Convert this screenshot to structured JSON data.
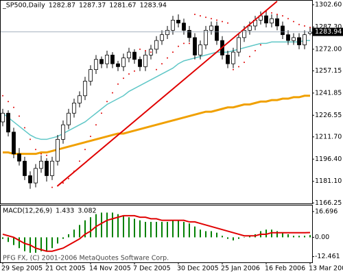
{
  "chart_data": [
    {
      "type": "candlestick",
      "symbol": "_SP500,Daily",
      "categories": [
        "29 Sep 2005",
        null,
        null,
        null,
        null,
        null,
        null,
        null,
        "21 Oct 2005",
        null,
        null,
        null,
        null,
        null,
        null,
        null,
        "14 Nov 2005",
        null,
        null,
        null,
        null,
        null,
        null,
        null,
        "7 Dec 2005",
        null,
        null,
        null,
        null,
        null,
        null,
        null,
        "30 Dec 2005",
        null,
        null,
        null,
        null,
        null,
        null,
        null,
        "25 Jan 2006",
        null,
        null,
        null,
        null,
        null,
        null,
        null,
        "16 Feb 2006",
        null,
        null,
        null,
        null,
        null,
        null,
        null,
        "13 Mar 2006"
      ],
      "open": [
        1222,
        1228,
        1215,
        1200,
        1195,
        1185,
        1180,
        1190,
        1195,
        1185,
        1195,
        1210,
        1220,
        1228,
        1235,
        1240,
        1250,
        1258,
        1265,
        1262,
        1268,
        1262,
        1260,
        1266,
        1270,
        1265,
        1260,
        1268,
        1272,
        1278,
        1282,
        1285,
        1292,
        1290,
        1285,
        1280,
        1268,
        1275,
        1285,
        1288,
        1278,
        1268,
        1262,
        1270,
        1280,
        1285,
        1288,
        1292,
        1295,
        1290,
        1293,
        1288,
        1282,
        1278,
        1280,
        1275,
        1282.87
      ],
      "high": [
        1231,
        1230,
        1218,
        1204,
        1198,
        1188,
        1193,
        1199,
        1197,
        1198,
        1213,
        1223,
        1231,
        1238,
        1243,
        1253,
        1261,
        1268,
        1267,
        1271,
        1270,
        1264,
        1269,
        1273,
        1272,
        1267,
        1271,
        1275,
        1281,
        1285,
        1288,
        1295,
        1296,
        1293,
        1288,
        1283,
        1278,
        1288,
        1291,
        1291,
        1281,
        1271,
        1273,
        1283,
        1288,
        1291,
        1295,
        1298,
        1298,
        1296,
        1296,
        1291,
        1285,
        1283,
        1283,
        1285,
        1287.37
      ],
      "low": [
        1219,
        1212,
        1197,
        1192,
        1182,
        1176,
        1177,
        1187,
        1181,
        1182,
        1192,
        1207,
        1217,
        1225,
        1232,
        1237,
        1247,
        1255,
        1259,
        1259,
        1259,
        1257,
        1257,
        1263,
        1262,
        1257,
        1257,
        1265,
        1269,
        1275,
        1279,
        1282,
        1287,
        1282,
        1277,
        1265,
        1265,
        1272,
        1282,
        1275,
        1265,
        1259,
        1259,
        1267,
        1277,
        1282,
        1285,
        1289,
        1287,
        1287,
        1285,
        1279,
        1275,
        1275,
        1272,
        1272,
        1281.67
      ],
      "close": [
        1228,
        1215,
        1200,
        1195,
        1185,
        1180,
        1190,
        1195,
        1185,
        1195,
        1210,
        1220,
        1228,
        1235,
        1240,
        1250,
        1258,
        1265,
        1262,
        1268,
        1262,
        1260,
        1266,
        1270,
        1265,
        1260,
        1268,
        1272,
        1278,
        1282,
        1285,
        1292,
        1290,
        1285,
        1280,
        1268,
        1275,
        1285,
        1288,
        1278,
        1268,
        1262,
        1270,
        1280,
        1285,
        1288,
        1292,
        1295,
        1290,
        1293,
        1288,
        1282,
        1278,
        1280,
        1275,
        1282,
        1283.94
      ],
      "series": [
        {
          "color": "#5fc7c7",
          "values": [
            1228,
            1225,
            1222,
            1219,
            1216,
            1213,
            1211,
            1210,
            1210,
            1211,
            1212,
            1214,
            1216,
            1218,
            1220,
            1222,
            1225,
            1228,
            1231,
            1234,
            1236,
            1238,
            1240,
            1243,
            1245,
            1247,
            1249,
            1251,
            1253,
            1255,
            1257,
            1259,
            1262,
            1264,
            1265,
            1266,
            1267,
            1268,
            1269,
            1270,
            1270,
            1270,
            1271,
            1272,
            1273,
            1274,
            1275,
            1276,
            1276,
            1277,
            1277,
            1277,
            1277,
            1277,
            1277,
            1278,
            1278
          ]
        },
        {
          "color": "#f0a000",
          "values": [
            1201,
            1201,
            1200,
            1200,
            1200,
            1200,
            1200,
            1201,
            1201,
            1202,
            1203,
            1204,
            1205,
            1206,
            1207,
            1208,
            1209,
            1210,
            1211,
            1212,
            1213,
            1214,
            1214,
            1215,
            1216,
            1217,
            1218,
            1219,
            1220,
            1221,
            1222,
            1223,
            1224,
            1225,
            1226,
            1227,
            1228,
            1229,
            1229,
            1230,
            1231,
            1232,
            1232,
            1233,
            1234,
            1234,
            1235,
            1236,
            1236,
            1237,
            1237,
            1238,
            1238,
            1239,
            1239,
            1240,
            1240
          ]
        }
      ],
      "sar": {
        "color": "#e00000",
        "values": [
          1240,
          1236,
          1232,
          1226,
          1218,
          1210,
          1203,
          1200,
          1199,
          1177,
          1178,
          1180,
          1183,
          1188,
          1195,
          1203,
          1212,
          1220,
          1228,
          1236,
          1242,
          1248,
          1252,
          1255,
          1257,
          1272,
          1271,
          1270,
          1258,
          1262,
          1266,
          1270,
          1274,
          1276,
          1276,
          1296,
          1295,
          1294,
          1293,
          1292,
          1291,
          1290,
          1258,
          1260,
          1263,
          1267,
          1271,
          1275,
          1298,
          1297,
          1296,
          1295,
          1293,
          1291,
          1289,
          1288,
          1287
        ]
      },
      "trendline": {
        "color": "#e00000",
        "x": [
          10,
          50
        ],
        "y": [
          1178,
          1305
        ]
      },
      "ylim": [
        1165.9,
        1305.4
      ],
      "yticks": [
        {
          "value": 1302.6,
          "label": "1302.60"
        },
        {
          "value": 1287.3,
          "label": "1287.30"
        },
        {
          "value": 1272,
          "label": "1272.00"
        },
        1257.15,
        1241.85,
        1226.55,
        {
          "value": 1211.7,
          "label": "1211.70"
        },
        {
          "value": 1196.4,
          "label": "1196.40"
        },
        {
          "value": 1181.1,
          "label": "1181.10"
        },
        1166.25
      ]
    },
    {
      "type": "macd",
      "title": "MACD(12,26,9)",
      "watermark": "PFG FX, (C) 2001-2006 MetaQuotes Software Corp.",
      "series": [
        {
          "color": "#008000",
          "values": [
            -1,
            -3,
            -5,
            -7,
            -9,
            -10,
            -10,
            -9,
            -9,
            -7,
            -4,
            -1,
            2,
            5,
            8,
            11,
            13,
            15,
            16,
            16,
            16,
            15,
            14,
            13,
            12,
            11,
            10,
            10,
            10,
            10,
            10,
            11,
            11,
            10,
            9,
            7,
            5,
            4,
            4,
            3,
            1,
            -1,
            -2,
            -1,
            0,
            1,
            2,
            4,
            5,
            5,
            4,
            3,
            2,
            1,
            1,
            1,
            1.433
          ]
        },
        {
          "color": "#e00000",
          "values": [
            2,
            1,
            0,
            -2,
            -4,
            -5,
            -7,
            -8,
            -9,
            -9,
            -8,
            -7,
            -5,
            -3,
            -1,
            2,
            4,
            7,
            9,
            11,
            12,
            13,
            14,
            14,
            14,
            13,
            13,
            12,
            12,
            11,
            11,
            11,
            11,
            11,
            10,
            10,
            9,
            8,
            7,
            6,
            5,
            4,
            3,
            2,
            1,
            1,
            1,
            2,
            2,
            3,
            3,
            3,
            3,
            3,
            3,
            3,
            3.082
          ]
        }
      ],
      "ylim": [
        -16.2,
        20.6
      ],
      "yticks": [
        16.696,
        {
          "value": 0,
          "label": "0.00"
        },
        -12.461
      ]
    }
  ]
}
